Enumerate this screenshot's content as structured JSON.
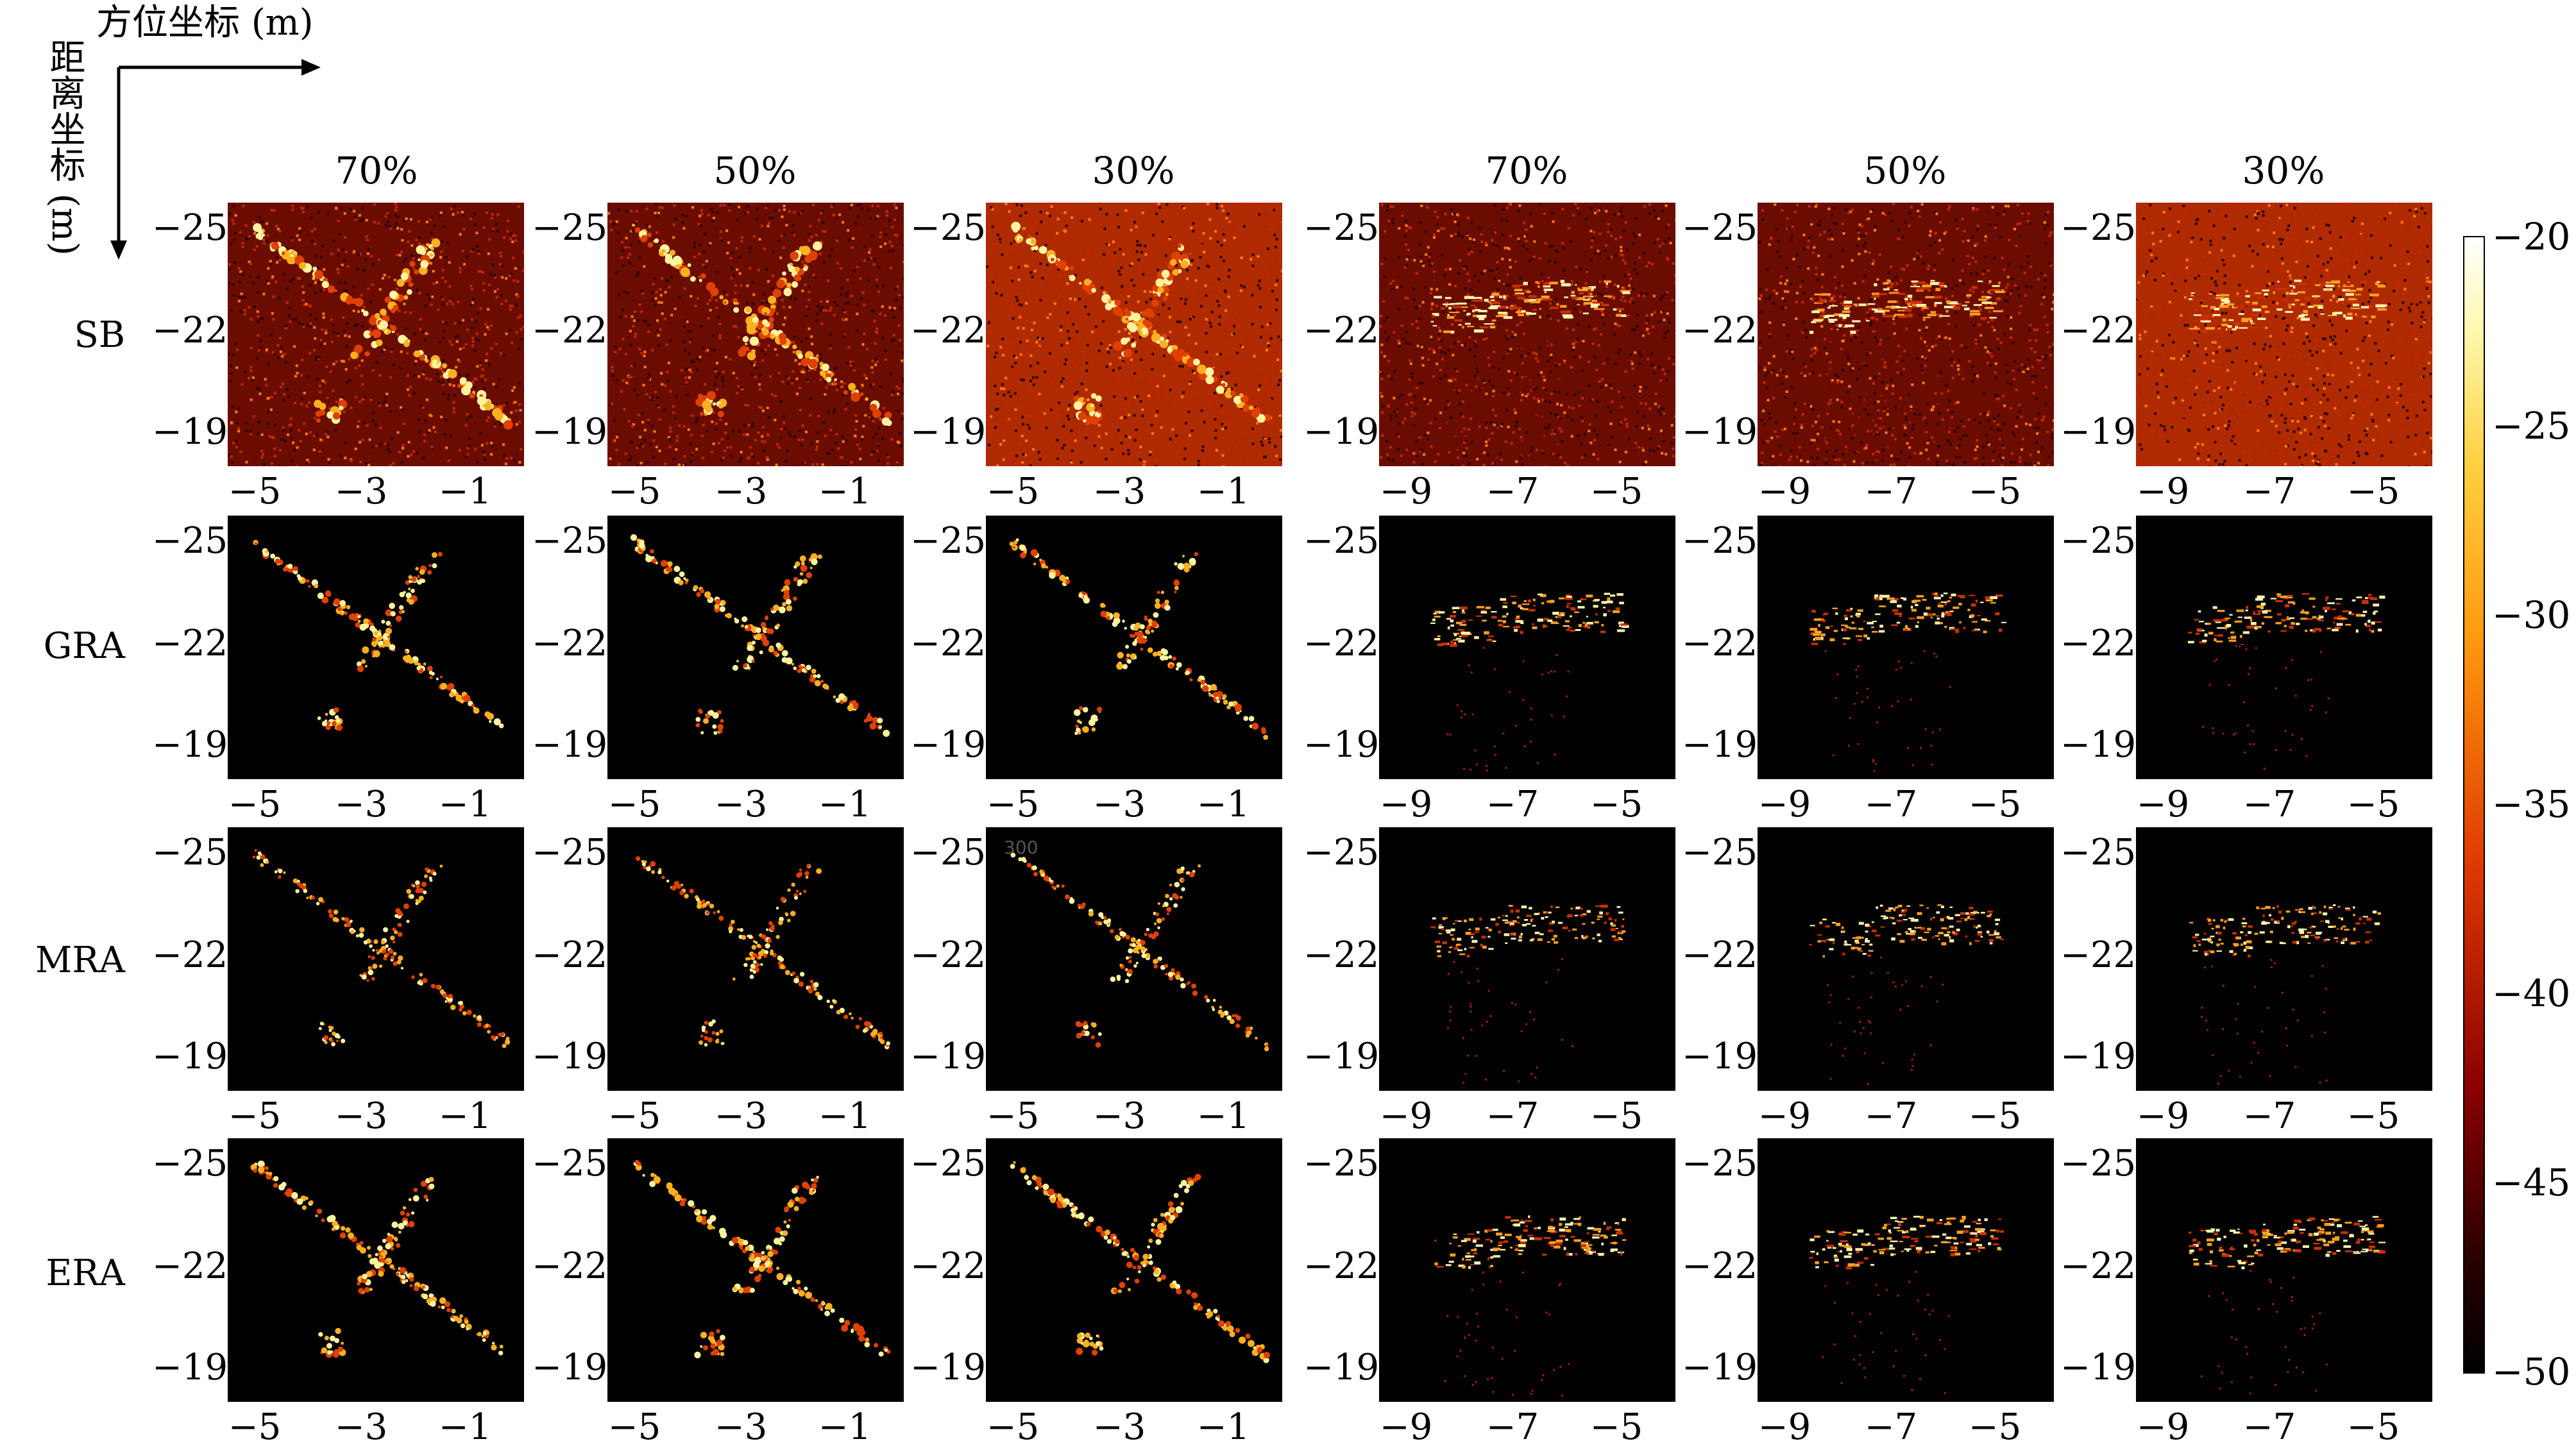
{
  "axes": {
    "azimuth_title": "方位坐标 (m)",
    "range_title": "距离坐标 (m)"
  },
  "column_headers": [
    "70%",
    "50%",
    "30%",
    "70%",
    "50%",
    "30%"
  ],
  "row_labels": [
    "SB",
    "GRA",
    "MRA",
    "ERA"
  ],
  "y_ticks": [
    "−25",
    "−22",
    "−19"
  ],
  "x_ticks_left": [
    "−5",
    "−3",
    "−1"
  ],
  "x_ticks_right": [
    "−9",
    "−7",
    "−5"
  ],
  "stray_text": "300",
  "colorbar": {
    "ticks": [
      "−20",
      "−25",
      "−30",
      "−35",
      "−40",
      "−45",
      "−50"
    ],
    "colormap": "hot",
    "range": [
      -50,
      -20
    ]
  },
  "colors": {
    "background": "#000000",
    "accent": "#ff9a10"
  }
}
